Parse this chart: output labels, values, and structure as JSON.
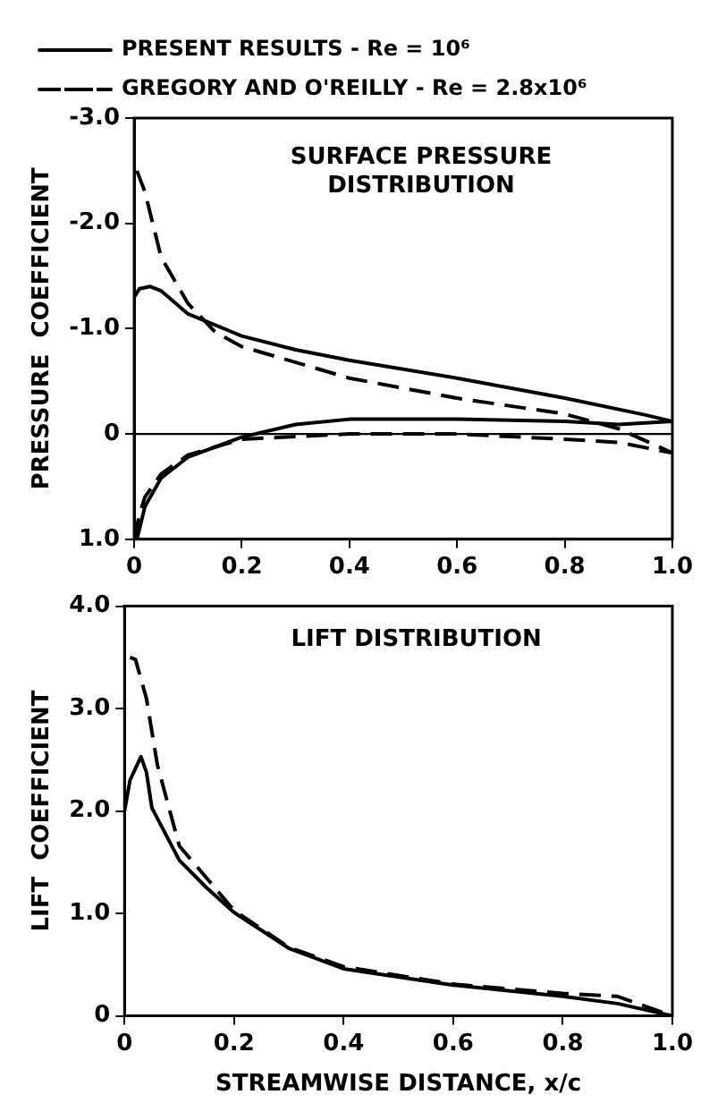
{
  "chart_data": [
    {
      "type": "line",
      "ylabel": "PRESSURE  COEFFICIENT",
      "annotations": [
        "SURFACE PRESSURE DISTRIBUTION"
      ],
      "xlim": [
        0,
        1
      ],
      "xticks": [
        0,
        0.2,
        0.4,
        0.6,
        0.8,
        {
          "value": 1,
          "label": "1.0"
        }
      ],
      "ylim": [
        1,
        -3
      ],
      "yticks": [
        {
          "value": -3,
          "label": "-3.0"
        },
        {
          "value": -2,
          "label": "-2.0"
        },
        {
          "value": -1,
          "label": "-1.0"
        },
        0,
        {
          "value": 1,
          "label": "1.0"
        }
      ],
      "grid": false,
      "legend": "top",
      "marker": "none",
      "ref_lines": [
        {
          "axis": "y",
          "value": 0,
          "color": "#000000",
          "line_style": "solid"
        }
      ],
      "series": [
        {
          "name": "PRESENT RESULTS - Re = 10⁶",
          "color": "#000000",
          "line_style": "solid",
          "x": [
            0,
            0.01,
            0.03,
            0.05,
            0.1,
            0.2,
            0.3,
            0.4,
            0.6,
            0.8,
            0.95,
            1.0
          ],
          "values": [
            -1.3,
            -1.38,
            -1.4,
            -1.36,
            -1.14,
            -0.93,
            -0.8,
            -0.7,
            -0.53,
            -0.34,
            -0.18,
            -0.12
          ]
        },
        {
          "color": "#000000",
          "line_style": "solid",
          "x": [
            0.005,
            0.01,
            0.02,
            0.05,
            0.1,
            0.2,
            0.3,
            0.4,
            0.6,
            0.8,
            0.9,
            1.0
          ],
          "values": [
            1.0,
            0.9,
            0.69,
            0.42,
            0.22,
            0.03,
            -0.09,
            -0.14,
            -0.14,
            -0.12,
            -0.09,
            -0.12
          ]
        },
        {
          "name": "GREGORY AND O'REILLY - Re = 2.8x10⁶",
          "color": "#000000",
          "line_style": "dashed",
          "x": [
            0.005,
            0.02,
            0.05,
            0.1,
            0.15,
            0.2,
            0.4,
            0.6,
            0.8,
            0.9,
            1.0
          ],
          "values": [
            -2.5,
            -2.3,
            -1.68,
            -1.24,
            -0.97,
            -0.83,
            -0.53,
            -0.34,
            -0.19,
            -0.05,
            0.18
          ]
        },
        {
          "color": "#000000",
          "line_style": "dashed",
          "x": [
            0,
            0.01,
            0.02,
            0.05,
            0.1,
            0.2,
            0.4,
            0.6,
            0.8,
            0.9,
            1.0
          ],
          "values": [
            1.0,
            0.76,
            0.6,
            0.38,
            0.2,
            0.05,
            0.0,
            0.0,
            0.05,
            0.08,
            0.18
          ]
        }
      ]
    },
    {
      "type": "line",
      "xlabel": "STREAMWISE DISTANCE, x/c",
      "ylabel": "LIFT  COEFFICIENT",
      "annotations": [
        "LIFT DISTRIBUTION"
      ],
      "xlim": [
        0,
        1
      ],
      "xticks": [
        0,
        0.2,
        0.4,
        0.6,
        0.8,
        {
          "value": 1,
          "label": "1.0"
        }
      ],
      "ylim": [
        0,
        4
      ],
      "yticks": [
        0,
        {
          "value": 1,
          "label": "1.0"
        },
        {
          "value": 2,
          "label": "2.0"
        },
        {
          "value": 3,
          "label": "3.0"
        },
        {
          "value": 4,
          "label": "4.0"
        }
      ],
      "grid": false,
      "marker": "none",
      "series": [
        {
          "color": "#000000",
          "line_style": "solid",
          "x": [
            0,
            0.01,
            0.03,
            0.04,
            0.05,
            0.1,
            0.15,
            0.2,
            0.3,
            0.4,
            0.6,
            0.8,
            0.9,
            1.0
          ],
          "values": [
            2.0,
            2.3,
            2.53,
            2.38,
            2.03,
            1.52,
            1.25,
            1.01,
            0.66,
            0.46,
            0.3,
            0.19,
            0.12,
            0
          ]
        },
        {
          "color": "#000000",
          "line_style": "dashed",
          "x": [
            0.01,
            0.02,
            0.04,
            0.06,
            0.1,
            0.2,
            0.3,
            0.4,
            0.6,
            0.8,
            0.9,
            1.0
          ],
          "values": [
            3.5,
            3.48,
            3.1,
            2.45,
            1.66,
            1.03,
            0.67,
            0.48,
            0.31,
            0.22,
            0.19,
            0
          ]
        }
      ]
    }
  ]
}
